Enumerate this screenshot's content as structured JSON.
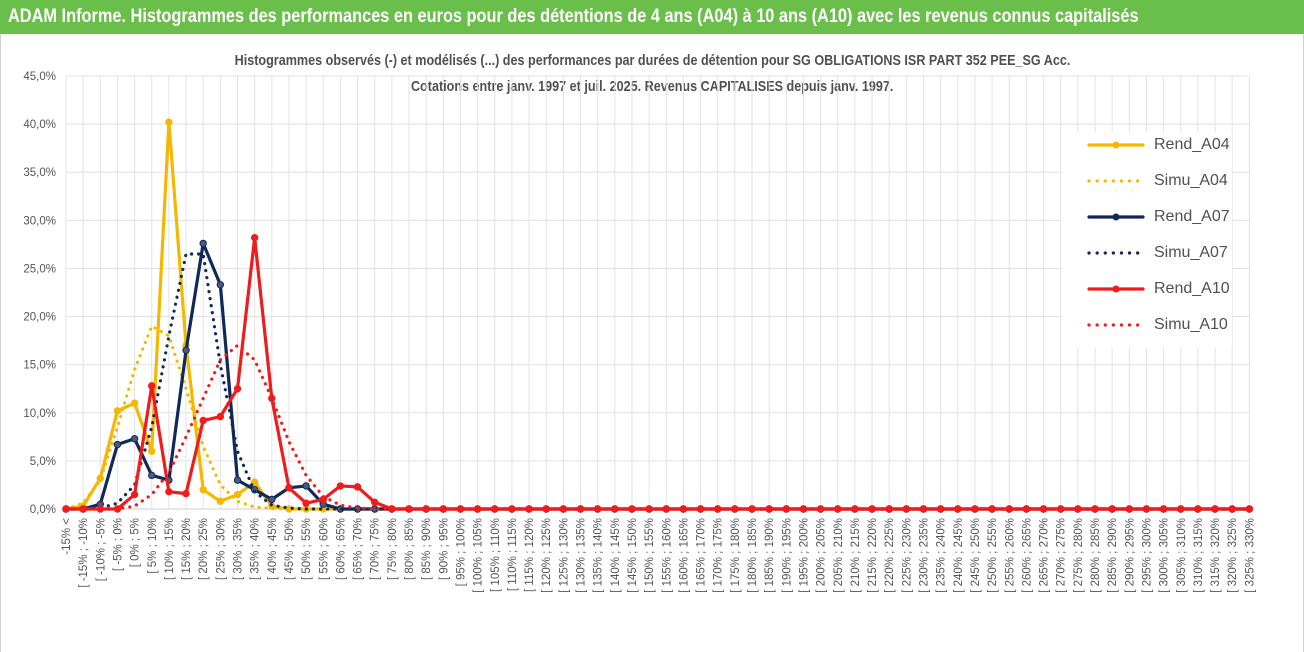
{
  "header": {
    "title": "ADAM Informe. Histogrammes des performances en euros pour des détentions de 4 ans (A04) à 10 ans (A10) avec les revenus connus capitalisés"
  },
  "chart_data": {
    "type": "line",
    "title_line1": "Histogrammes observés (-)  et modélisés (...) des performances par durées de détention pour SG OBLIGATIONS ISR PART 352 PEE_SG Acc.",
    "title_line2": "Cotations entre janv. 1997 et juil. 2025. Revenus CAPITALISES depuis janv. 1997.",
    "ylim": [
      0,
      45
    ],
    "y_ticks": [
      "0,0%",
      "5,0%",
      "10,0%",
      "15,0%",
      "20,0%",
      "25,0%",
      "30,0%",
      "35,0%",
      "40,0%",
      "45,0%"
    ],
    "grid": true,
    "legend_position": "right",
    "categories": [
      "-15% <",
      "[ -15% ; -10%",
      "[ -10% ; -5%",
      "[ -5% ; 0%",
      "[ 0% ; 5%",
      "[ 5% ; 10%",
      "[ 10% ; 15%",
      "[ 15% ; 20%",
      "[ 20% ; 25%",
      "[ 25% ; 30%",
      "[ 30% ; 35%",
      "[ 35% ; 40%",
      "[ 40% ; 45%",
      "[ 45% ; 50%",
      "[ 50% ; 55%",
      "[ 55% ; 60%",
      "[ 60% ; 65%",
      "[ 65% ; 70%",
      "[ 70% ; 75%",
      "[ 75% ; 80%",
      "[ 80% ; 85%",
      "[ 85% ; 90%",
      "[ 90% ; 95%",
      "[ 95% ; 100%",
      "[ 100% ; 105%",
      "[ 105% ; 110%",
      "[ 110% ; 115%",
      "[ 115% ; 120%",
      "[ 120% ; 125%",
      "[ 125% ; 130%",
      "[ 130% ; 135%",
      "[ 135% ; 140%",
      "[ 140% ; 145%",
      "[ 145% ; 150%",
      "[ 150% ; 155%",
      "[ 155% ; 160%",
      "[ 160% ; 165%",
      "[ 165% ; 170%",
      "[ 170% ; 175%",
      "[ 175% ; 180%",
      "[ 180% ; 185%",
      "[ 185% ; 190%",
      "[ 190% ; 195%",
      "[ 195% ; 200%",
      "[ 200% ; 205%",
      "[ 205% ; 210%",
      "[ 210% ; 215%",
      "[ 215% ; 220%",
      "[ 220% ; 225%",
      "[ 225% ; 230%",
      "[ 230% ; 235%",
      "[ 235% ; 240%",
      "[ 240% ; 245%",
      "[ 245% ; 250%",
      "[ 250% ; 255%",
      "[ 255% ; 260%",
      "[ 260% ; 265%",
      "[ 265% ; 270%",
      "[ 270% ; 275%",
      "[ 275% ; 280%",
      "[ 280% ; 285%",
      "[ 285% ; 290%",
      "[ 290% ; 295%",
      "[ 295% ; 300%",
      "[ 300% ; 305%",
      "[ 305% ; 310%",
      "[ 310% ; 315%",
      "[ 315% ; 320%",
      "[ 320% ; 325%",
      "[ 325% ; 330%"
    ],
    "series": [
      {
        "name": "Rend_A04",
        "color": "#f5b800",
        "style": "solid",
        "markers": true,
        "values": [
          0,
          0.3,
          3.2,
          10.2,
          11.0,
          6.0,
          40.2,
          17.0,
          2.0,
          0.8,
          1.5,
          2.8,
          0.3,
          0,
          0,
          0,
          0,
          0,
          0,
          0,
          0,
          0,
          0,
          0,
          0,
          0,
          0,
          0,
          0,
          0,
          0,
          0,
          0,
          0,
          0,
          0,
          0,
          0,
          0,
          0,
          0,
          0,
          0,
          0,
          0,
          0,
          0,
          0,
          0,
          0,
          0,
          0,
          0,
          0,
          0,
          0,
          0,
          0,
          0,
          0,
          0,
          0,
          0,
          0,
          0,
          0,
          0,
          0,
          0,
          0
        ]
      },
      {
        "name": "Simu_A04",
        "color": "#f5b800",
        "style": "dotted",
        "markers": false,
        "values": [
          0,
          0.6,
          3.0,
          8.5,
          14.5,
          19.0,
          18.0,
          12.5,
          6.5,
          2.5,
          0.8,
          0.2,
          0.05,
          0,
          0,
          0,
          0,
          0,
          0,
          0,
          0,
          0,
          0,
          0,
          0,
          0,
          0,
          0,
          0,
          0,
          0,
          0,
          0,
          0,
          0,
          0,
          0,
          0,
          0,
          0,
          0,
          0,
          0,
          0,
          0,
          0,
          0,
          0,
          0,
          0,
          0,
          0,
          0,
          0,
          0,
          0,
          0,
          0,
          0,
          0,
          0,
          0,
          0,
          0,
          0,
          0,
          0,
          0,
          0,
          0
        ]
      },
      {
        "name": "Rend_A07",
        "color": "#10285a",
        "style": "solid",
        "markers": true,
        "values": [
          0,
          0,
          0.5,
          6.7,
          7.3,
          3.5,
          3.0,
          16.5,
          27.6,
          23.3,
          3.0,
          2.0,
          1.0,
          2.2,
          2.4,
          0.5,
          0,
          0,
          0,
          0,
          0,
          0,
          0,
          0,
          0,
          0,
          0,
          0,
          0,
          0,
          0,
          0,
          0,
          0,
          0,
          0,
          0,
          0,
          0,
          0,
          0,
          0,
          0,
          0,
          0,
          0,
          0,
          0,
          0,
          0,
          0,
          0,
          0,
          0,
          0,
          0,
          0,
          0,
          0,
          0,
          0,
          0,
          0,
          0,
          0,
          0,
          0,
          0,
          0,
          0
        ]
      },
      {
        "name": "Simu_A07",
        "color": "#10285a",
        "style": "dotted",
        "markers": false,
        "values": [
          0,
          0,
          0.1,
          0.6,
          2.5,
          8.5,
          18.0,
          26.5,
          26.5,
          15.0,
          6.0,
          1.8,
          0.4,
          0.1,
          0,
          0,
          0,
          0,
          0,
          0,
          0,
          0,
          0,
          0,
          0,
          0,
          0,
          0,
          0,
          0,
          0,
          0,
          0,
          0,
          0,
          0,
          0,
          0,
          0,
          0,
          0,
          0,
          0,
          0,
          0,
          0,
          0,
          0,
          0,
          0,
          0,
          0,
          0,
          0,
          0,
          0,
          0,
          0,
          0,
          0,
          0,
          0,
          0,
          0,
          0,
          0,
          0,
          0,
          0,
          0
        ]
      },
      {
        "name": "Rend_A10",
        "color": "#ee1c1c",
        "style": "solid",
        "markers": true,
        "values": [
          0,
          0,
          0,
          0,
          1.5,
          12.8,
          1.8,
          1.6,
          9.2,
          9.6,
          12.5,
          28.2,
          11.5,
          2.2,
          0.6,
          1.0,
          2.4,
          2.3,
          0.7,
          0,
          0,
          0,
          0,
          0,
          0,
          0,
          0,
          0,
          0,
          0,
          0,
          0,
          0,
          0,
          0,
          0,
          0,
          0,
          0,
          0,
          0,
          0,
          0,
          0,
          0,
          0,
          0,
          0,
          0,
          0,
          0,
          0,
          0,
          0,
          0,
          0,
          0,
          0,
          0,
          0,
          0,
          0,
          0,
          0,
          0,
          0,
          0,
          0,
          0,
          0
        ]
      },
      {
        "name": "Simu_A10",
        "color": "#ee1c1c",
        "style": "dotted",
        "markers": false,
        "values": [
          0,
          0,
          0,
          0,
          0.3,
          1.5,
          3.8,
          7.5,
          11.5,
          15.5,
          17.0,
          15.5,
          11.5,
          7.0,
          3.5,
          1.3,
          0.4,
          0.1,
          0,
          0,
          0,
          0,
          0,
          0,
          0,
          0,
          0,
          0,
          0,
          0,
          0,
          0,
          0,
          0,
          0,
          0,
          0,
          0,
          0,
          0,
          0,
          0,
          0,
          0,
          0,
          0,
          0,
          0,
          0,
          0,
          0,
          0,
          0,
          0,
          0,
          0,
          0,
          0,
          0,
          0,
          0,
          0,
          0,
          0,
          0,
          0,
          0,
          0,
          0,
          0
        ]
      }
    ]
  }
}
